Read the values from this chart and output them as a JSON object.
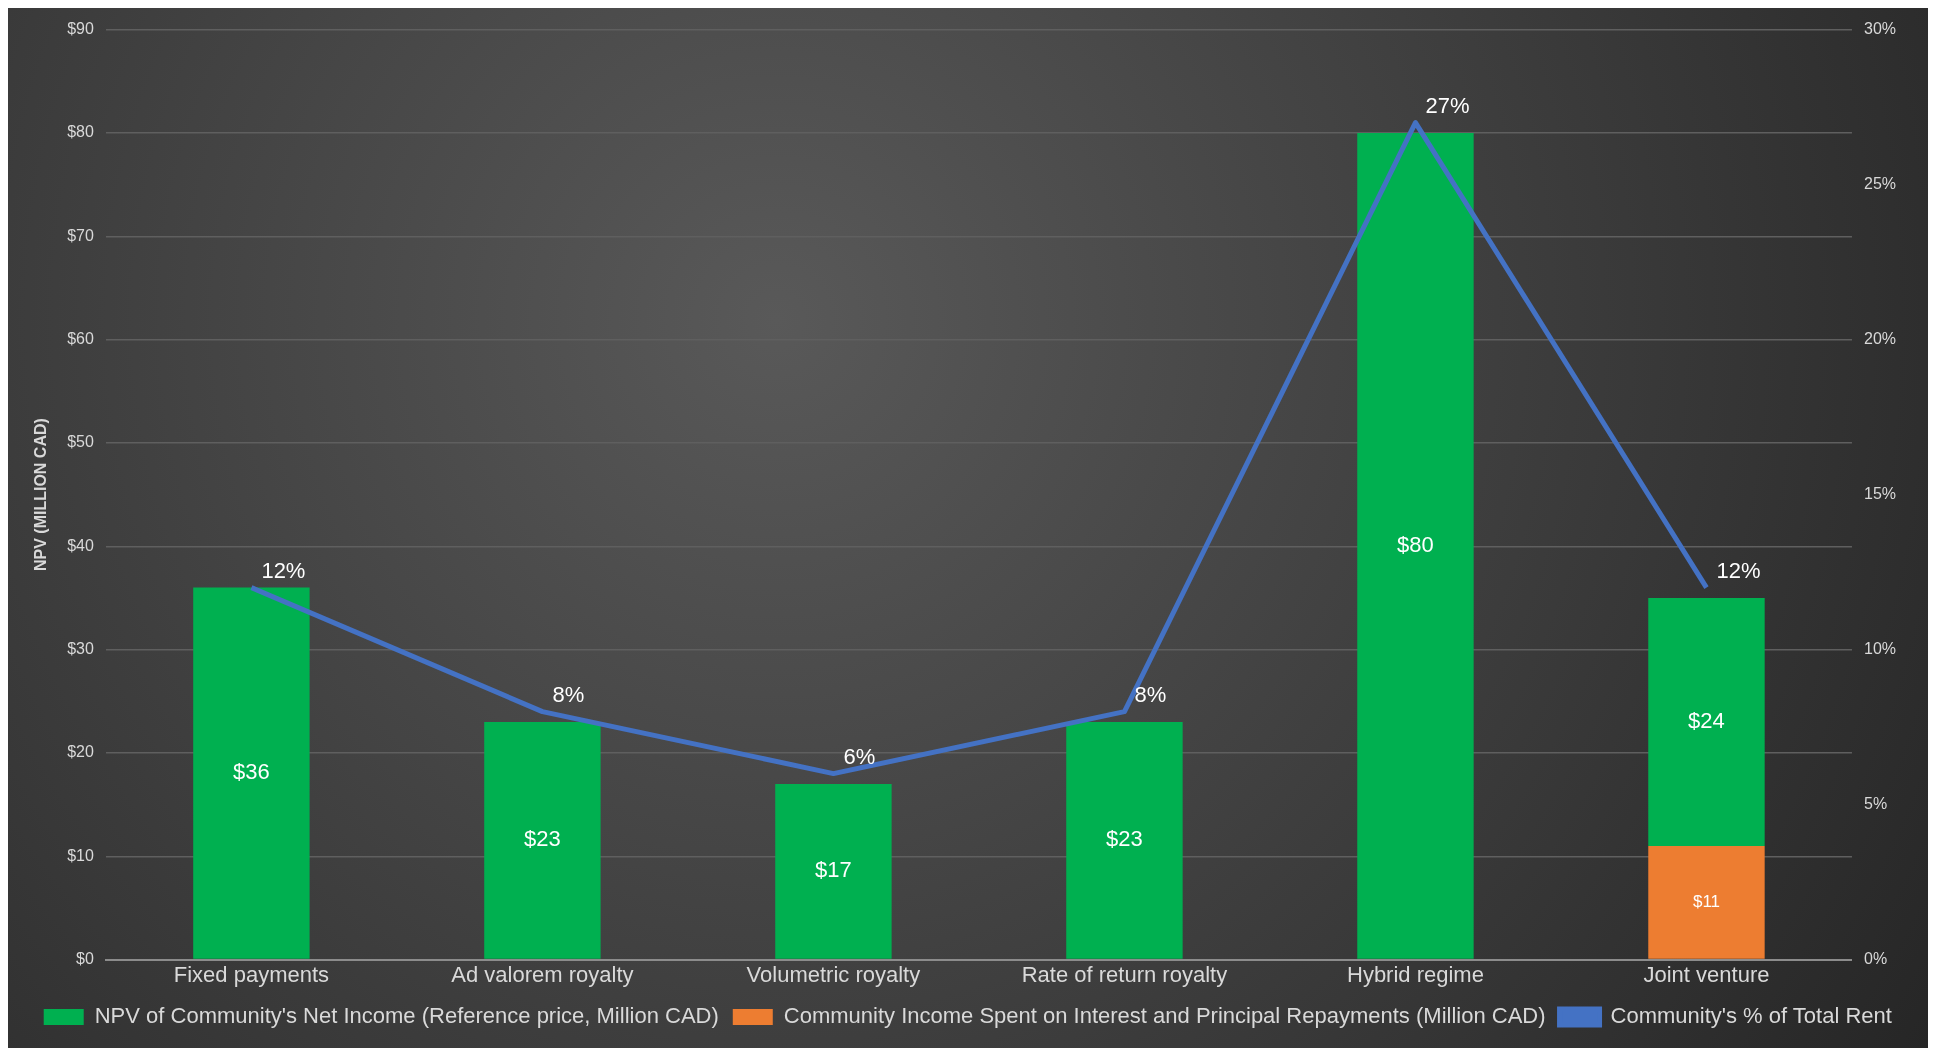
{
  "chart_data": {
    "type": "bar",
    "stacked": true,
    "ylabel": "NPV (MILLION CAD)",
    "categories": [
      "Fixed payments",
      "Ad valorem royalty",
      "Volumetric royalty",
      "Rate of return royalty",
      "Hybrid regime",
      "Joint venture"
    ],
    "series": [
      {
        "name": "Community Income Spent on Interest and Principal Repayments (Million CAD)",
        "color": "#ed7d31",
        "values": [
          null,
          null,
          null,
          null,
          null,
          11
        ],
        "value_labels": [
          null,
          null,
          null,
          null,
          null,
          "$11"
        ]
      },
      {
        "name": "NPV of Community's Net Income (Reference price, Million CAD)",
        "color": "#00b050",
        "values": [
          36,
          23,
          17,
          23,
          80,
          24
        ],
        "value_labels": [
          "$36",
          "$23",
          "$17",
          "$23",
          "$80",
          "$24"
        ]
      },
      {
        "name": "Community's % of Total Rent",
        "type": "line",
        "axis": "y2",
        "color": "#4472c4",
        "values": [
          12,
          8,
          6,
          8,
          27,
          12
        ],
        "value_labels": [
          "12%",
          "8%",
          "6%",
          "8%",
          "27%",
          "12%"
        ]
      }
    ],
    "ylim": [
      0,
      90
    ],
    "yticks": [
      {
        "value": 0,
        "label": "$0"
      },
      {
        "value": 10,
        "label": "$10"
      },
      {
        "value": 20,
        "label": "$20"
      },
      {
        "value": 30,
        "label": "$30"
      },
      {
        "value": 40,
        "label": "$40"
      },
      {
        "value": 50,
        "label": "$50"
      },
      {
        "value": 60,
        "label": "$60"
      },
      {
        "value": 70,
        "label": "$70"
      },
      {
        "value": 80,
        "label": "$80"
      },
      {
        "value": 90,
        "label": "$90"
      }
    ],
    "y2lim": [
      0,
      30
    ],
    "y2ticks": [
      {
        "value": 0,
        "label": "0%"
      },
      {
        "value": 5,
        "label": "5%"
      },
      {
        "value": 10,
        "label": "10%"
      },
      {
        "value": 15,
        "label": "15%"
      },
      {
        "value": 20,
        "label": "20%"
      },
      {
        "value": 25,
        "label": "25%"
      },
      {
        "value": 30,
        "label": "30%"
      }
    ],
    "grid": "y",
    "legend": "bottom",
    "marker": "none"
  }
}
